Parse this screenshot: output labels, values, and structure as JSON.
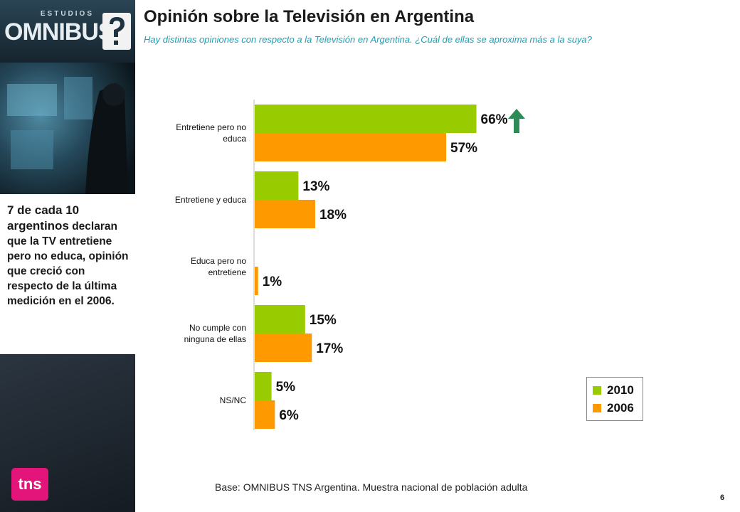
{
  "brand": {
    "studios": "ESTUDIOS",
    "omnibus": "OMNIBUS",
    "tns": "tns"
  },
  "title": "Opinión sobre la Televisión en Argentina",
  "subtitle": "Hay distintas opiniones con respecto a la Televisión en Argentina. ¿Cuál de ellas se aproxima más a la suya?",
  "summary": {
    "lead": "7 de cada 10 argentinos",
    "body": "declaran que la TV entretiene pero no educa, opinión que creció con respecto de la última medición en el 2006."
  },
  "base_note": "Base: OMNIBUS TNS Argentina. Muestra nacional de población adulta",
  "page_number": "6",
  "colors": {
    "series_2010": "#99cc00",
    "series_2006": "#ff9900",
    "trend_arrow": "#2e8b57",
    "subtitle": "#1fa0b4"
  },
  "chart_data": {
    "type": "bar",
    "orientation": "horizontal",
    "categories": [
      [
        "Entretiene pero no",
        "educa"
      ],
      [
        "Entretiene y educa"
      ],
      [
        "Educa pero no",
        "entretiene"
      ],
      [
        "No cumple con",
        "ninguna de ellas"
      ],
      [
        "NS/NC"
      ]
    ],
    "series": [
      {
        "name": "2010",
        "values": [
          66,
          13,
          null,
          15,
          5
        ]
      },
      {
        "name": "2006",
        "values": [
          57,
          18,
          1,
          17,
          6
        ]
      }
    ],
    "value_suffix": "%",
    "xlim": [
      0,
      100
    ],
    "legend": "bottom-right",
    "grid": false
  }
}
